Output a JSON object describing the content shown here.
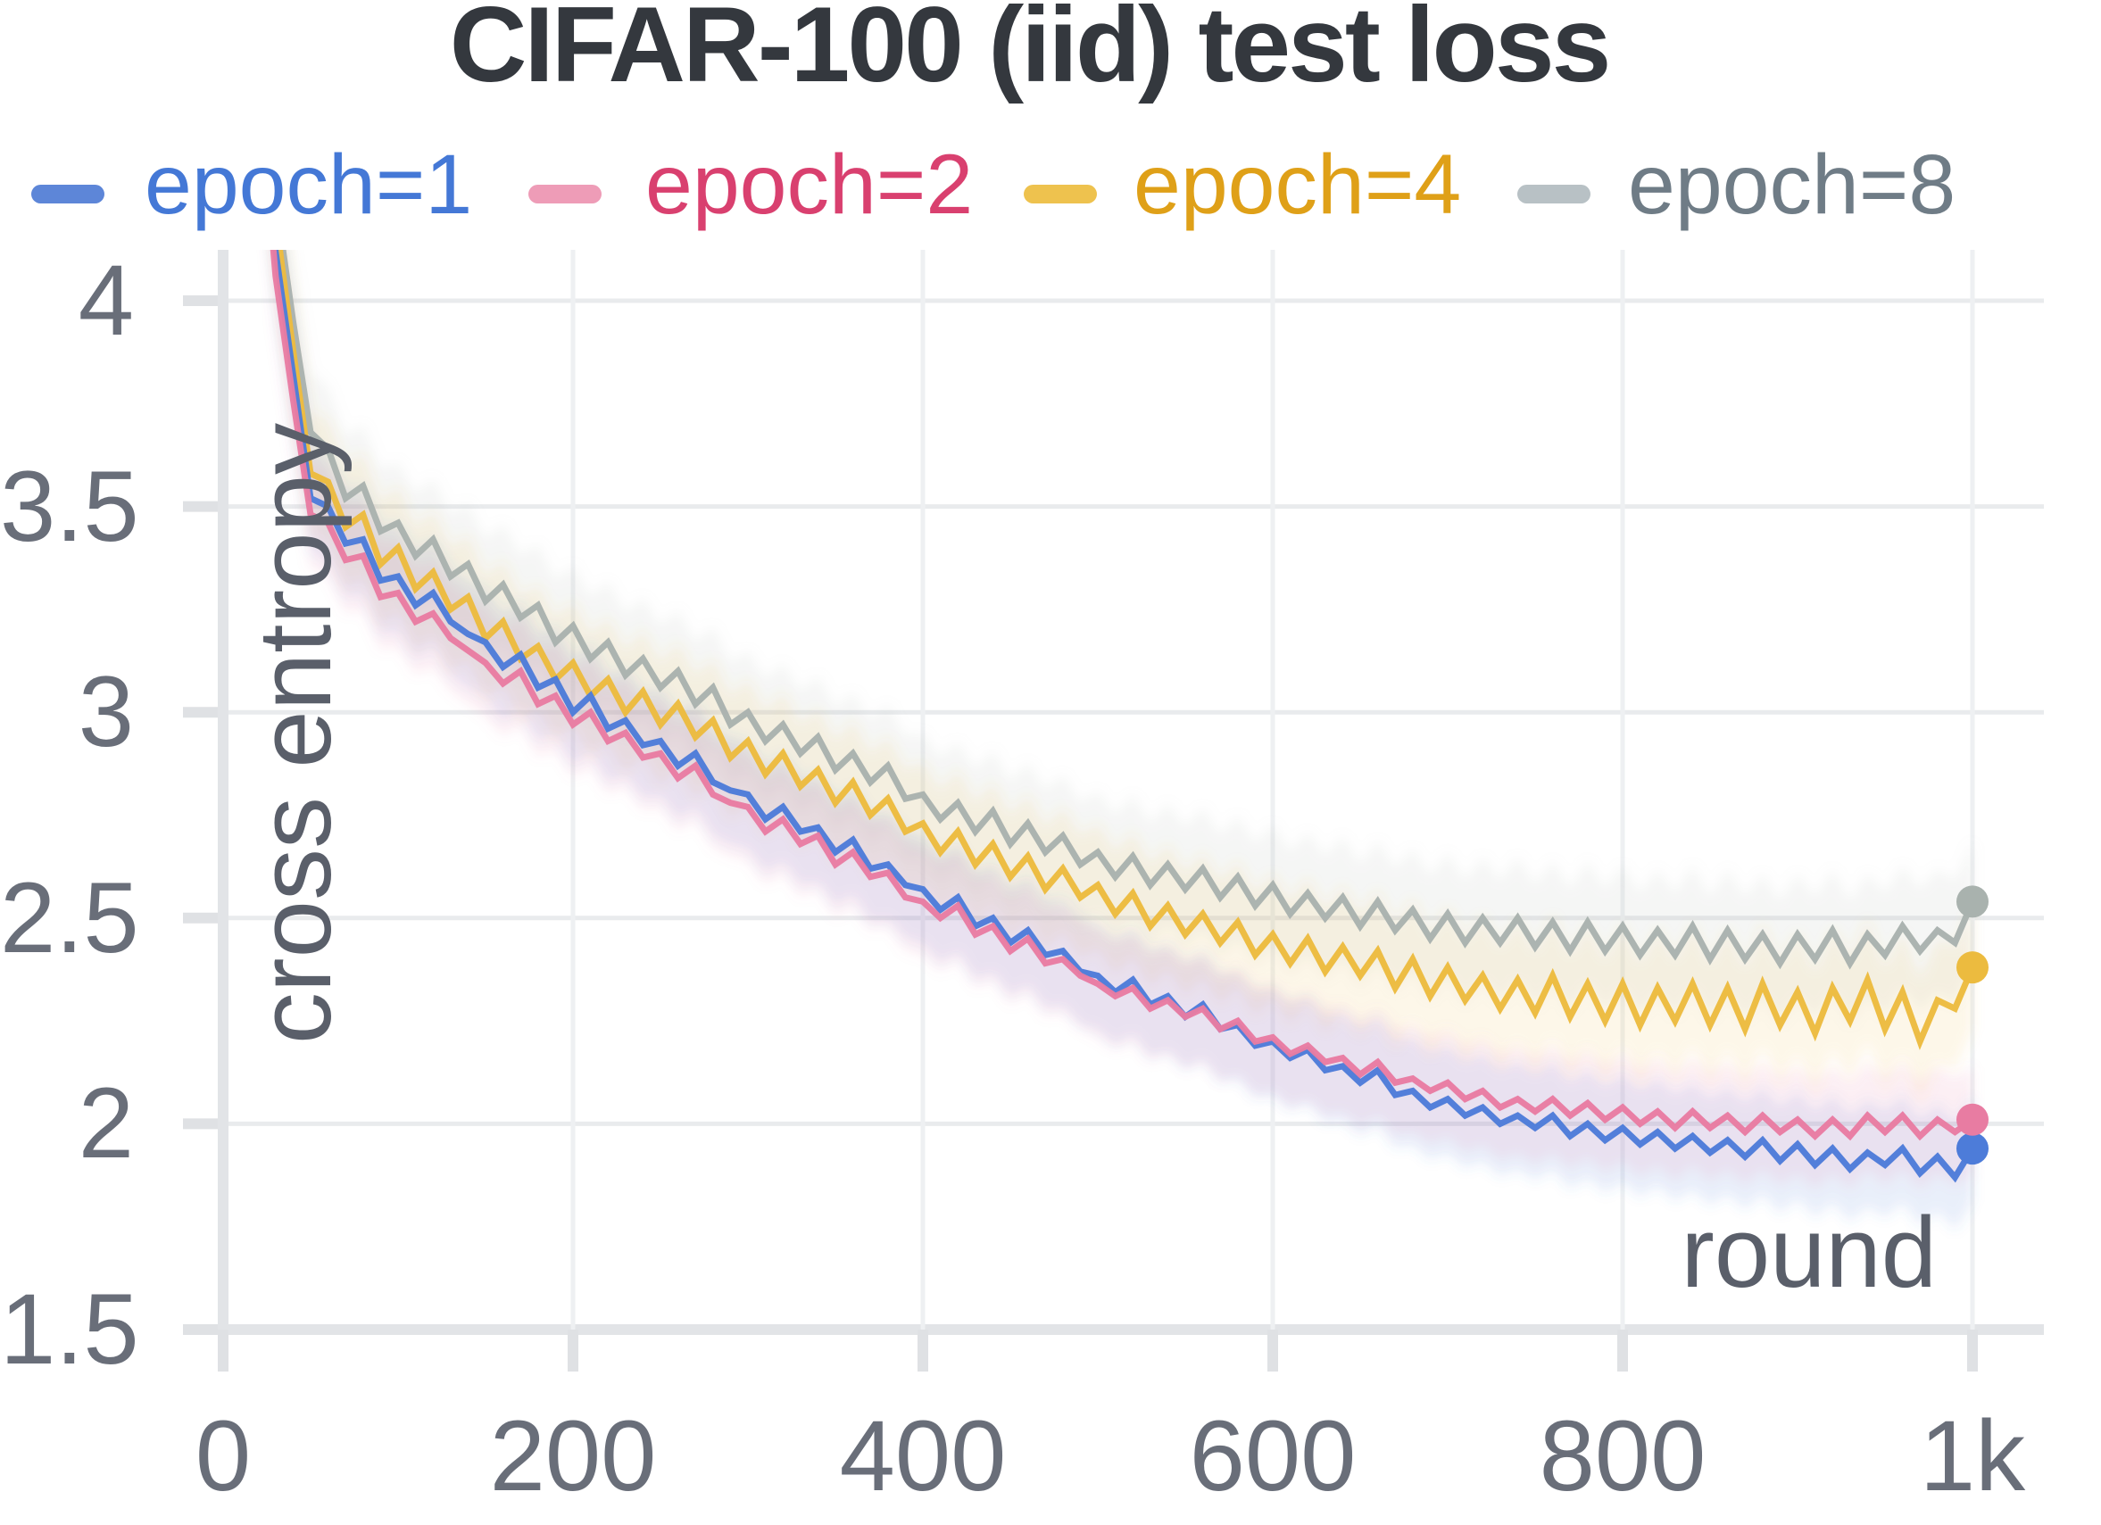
{
  "title": "CIFAR-100 (iid) test loss",
  "legend": {
    "items": [
      {
        "label": "epoch=1",
        "swatch_color": "#5d86d8",
        "text_color": "#4478d6"
      },
      {
        "label": "epoch=2",
        "swatch_color": "#ee9cb7",
        "text_color": "#d9406f"
      },
      {
        "label": "epoch=4",
        "swatch_color": "#eec24e",
        "text_color": "#dfa018"
      },
      {
        "label": "epoch=8",
        "swatch_color": "#b8c1c5",
        "text_color": "#6f7c86"
      }
    ]
  },
  "chart_data": {
    "type": "line",
    "title": "CIFAR-100 (iid) test loss",
    "xlabel": "round",
    "ylabel": "cross entropy",
    "legend_position": "top",
    "grid": true,
    "xlim": [
      0,
      1040
    ],
    "ylim": [
      1.5,
      4.12
    ],
    "x_ticks": {
      "values": [
        0,
        200,
        400,
        600,
        800,
        1000
      ],
      "labels": [
        "0",
        "200",
        "400",
        "600",
        "800",
        "1k"
      ]
    },
    "y_ticks": {
      "values": [
        4,
        3.5,
        3,
        2.5,
        2,
        1.5
      ],
      "labels": [
        "4",
        "3.5",
        "3",
        "2.5",
        "2",
        "1.5"
      ]
    },
    "x_start": 20,
    "x_step": 10,
    "end_markers": true,
    "series": [
      {
        "name": "epoch=8",
        "color": "#a9b2ae",
        "band_halfwidth": 0.15,
        "final_value": 2.54,
        "values": [
          4.65,
          4.25,
          3.95,
          3.68,
          3.64,
          3.52,
          3.55,
          3.44,
          3.46,
          3.38,
          3.42,
          3.33,
          3.36,
          3.27,
          3.31,
          3.23,
          3.26,
          3.17,
          3.21,
          3.13,
          3.17,
          3.09,
          3.13,
          3.06,
          3.1,
          3.02,
          3.06,
          2.97,
          3.0,
          2.93,
          2.97,
          2.9,
          2.94,
          2.86,
          2.9,
          2.83,
          2.87,
          2.79,
          2.8,
          2.74,
          2.78,
          2.71,
          2.76,
          2.68,
          2.73,
          2.66,
          2.7,
          2.63,
          2.66,
          2.6,
          2.65,
          2.58,
          2.63,
          2.57,
          2.62,
          2.55,
          2.6,
          2.53,
          2.58,
          2.51,
          2.56,
          2.5,
          2.55,
          2.48,
          2.54,
          2.47,
          2.52,
          2.45,
          2.51,
          2.44,
          2.5,
          2.44,
          2.5,
          2.43,
          2.49,
          2.42,
          2.49,
          2.42,
          2.48,
          2.41,
          2.47,
          2.41,
          2.48,
          2.4,
          2.47,
          2.4,
          2.46,
          2.39,
          2.46,
          2.4,
          2.47,
          2.39,
          2.46,
          2.41,
          2.48,
          2.42,
          2.47,
          2.44,
          2.54
        ]
      },
      {
        "name": "epoch=4",
        "color": "#ecbb3f",
        "band_halfwidth": 0.15,
        "final_value": 2.38,
        "values": [
          4.62,
          4.2,
          3.88,
          3.58,
          3.56,
          3.45,
          3.48,
          3.36,
          3.4,
          3.3,
          3.34,
          3.25,
          3.28,
          3.18,
          3.22,
          3.13,
          3.16,
          3.08,
          3.12,
          3.04,
          3.08,
          3.0,
          3.05,
          2.97,
          3.02,
          2.94,
          2.98,
          2.89,
          2.93,
          2.85,
          2.9,
          2.82,
          2.86,
          2.78,
          2.83,
          2.75,
          2.79,
          2.71,
          2.73,
          2.66,
          2.71,
          2.63,
          2.68,
          2.6,
          2.65,
          2.57,
          2.62,
          2.55,
          2.58,
          2.51,
          2.56,
          2.48,
          2.53,
          2.46,
          2.51,
          2.44,
          2.49,
          2.41,
          2.46,
          2.39,
          2.45,
          2.37,
          2.43,
          2.36,
          2.42,
          2.33,
          2.4,
          2.31,
          2.38,
          2.3,
          2.36,
          2.28,
          2.35,
          2.27,
          2.36,
          2.26,
          2.34,
          2.25,
          2.34,
          2.24,
          2.33,
          2.25,
          2.34,
          2.24,
          2.33,
          2.23,
          2.34,
          2.24,
          2.32,
          2.22,
          2.33,
          2.25,
          2.35,
          2.23,
          2.32,
          2.2,
          2.3,
          2.28,
          2.38
        ]
      },
      {
        "name": "epoch=1",
        "color": "#4d7cd9",
        "band_halfwidth": 0.13,
        "final_value": 1.94,
        "values": [
          4.6,
          4.12,
          3.82,
          3.52,
          3.5,
          3.41,
          3.42,
          3.32,
          3.33,
          3.26,
          3.29,
          3.22,
          3.19,
          3.17,
          3.11,
          3.14,
          3.06,
          3.08,
          3.0,
          3.04,
          2.96,
          2.98,
          2.92,
          2.93,
          2.87,
          2.9,
          2.83,
          2.81,
          2.8,
          2.74,
          2.77,
          2.71,
          2.72,
          2.66,
          2.69,
          2.62,
          2.63,
          2.58,
          2.57,
          2.52,
          2.55,
          2.48,
          2.5,
          2.44,
          2.47,
          2.41,
          2.42,
          2.37,
          2.36,
          2.32,
          2.35,
          2.29,
          2.31,
          2.26,
          2.29,
          2.23,
          2.24,
          2.19,
          2.2,
          2.16,
          2.18,
          2.13,
          2.14,
          2.1,
          2.13,
          2.07,
          2.08,
          2.04,
          2.06,
          2.02,
          2.04,
          2.0,
          2.02,
          1.99,
          2.02,
          1.97,
          2.0,
          1.96,
          1.99,
          1.95,
          1.98,
          1.94,
          1.97,
          1.93,
          1.96,
          1.92,
          1.96,
          1.91,
          1.95,
          1.9,
          1.94,
          1.89,
          1.93,
          1.9,
          1.94,
          1.88,
          1.92,
          1.87,
          1.94
        ]
      },
      {
        "name": "epoch=2",
        "color": "#e87ca2",
        "band_halfwidth": 0.13,
        "final_value": 2.01,
        "values": [
          4.55,
          4.06,
          3.76,
          3.48,
          3.46,
          3.37,
          3.38,
          3.28,
          3.29,
          3.22,
          3.24,
          3.18,
          3.15,
          3.12,
          3.07,
          3.1,
          3.02,
          3.04,
          2.97,
          3.0,
          2.93,
          2.95,
          2.89,
          2.9,
          2.84,
          2.87,
          2.8,
          2.78,
          2.77,
          2.71,
          2.74,
          2.68,
          2.7,
          2.63,
          2.66,
          2.6,
          2.61,
          2.55,
          2.54,
          2.5,
          2.53,
          2.46,
          2.48,
          2.42,
          2.45,
          2.39,
          2.4,
          2.36,
          2.34,
          2.31,
          2.33,
          2.28,
          2.3,
          2.26,
          2.28,
          2.23,
          2.25,
          2.2,
          2.21,
          2.17,
          2.19,
          2.15,
          2.16,
          2.12,
          2.15,
          2.1,
          2.11,
          2.08,
          2.1,
          2.06,
          2.08,
          2.04,
          2.06,
          2.03,
          2.06,
          2.02,
          2.05,
          2.01,
          2.04,
          2.0,
          2.03,
          1.99,
          2.03,
          1.99,
          2.02,
          1.98,
          2.02,
          1.98,
          2.01,
          1.97,
          2.01,
          1.97,
          2.02,
          1.98,
          2.02,
          1.97,
          2.01,
          1.98,
          2.01
        ]
      }
    ]
  },
  "style_colors": {
    "title": "#34383e",
    "tick_label": "#696e79",
    "axis_label": "#5a5f6a",
    "grid_line": "#e9ebed",
    "axis_line": "#e2e4e7",
    "background": "#ffffff"
  }
}
